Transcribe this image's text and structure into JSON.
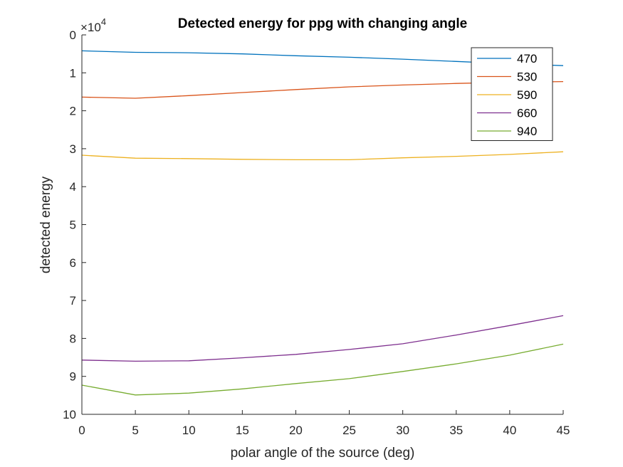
{
  "chart_data": {
    "type": "line",
    "title": "Detected energy for ppg with changing angle",
    "xlabel": "polar angle of the source (deg)",
    "ylabel": "detected energy",
    "y_multiplier_base": "×10",
    "y_multiplier_exp": "4",
    "y_direction": "reversed",
    "xlim": [
      0,
      45
    ],
    "ylim": [
      0,
      10
    ],
    "xticks": [
      "0",
      "5",
      "10",
      "15",
      "20",
      "25",
      "30",
      "35",
      "40",
      "45"
    ],
    "yticks": [
      "0",
      "1",
      "2",
      "3",
      "4",
      "5",
      "6",
      "7",
      "8",
      "9",
      "10"
    ],
    "grid": false,
    "legend_position": "top-right",
    "x": [
      0,
      5,
      10,
      15,
      20,
      25,
      30,
      35,
      40,
      45
    ],
    "series": [
      {
        "name": "470",
        "color": "#0072BD",
        "values": [
          0.42,
          0.46,
          0.47,
          0.5,
          0.55,
          0.59,
          0.64,
          0.7,
          0.76,
          0.81
        ]
      },
      {
        "name": "530",
        "color": "#D95319",
        "values": [
          1.64,
          1.67,
          1.6,
          1.52,
          1.44,
          1.37,
          1.32,
          1.28,
          1.25,
          1.23
        ]
      },
      {
        "name": "590",
        "color": "#EDB120",
        "values": [
          3.17,
          3.25,
          3.26,
          3.28,
          3.29,
          3.29,
          3.24,
          3.2,
          3.15,
          3.08
        ]
      },
      {
        "name": "660",
        "color": "#7E2F8E",
        "values": [
          8.57,
          8.6,
          8.59,
          8.51,
          8.42,
          8.29,
          8.14,
          7.91,
          7.66,
          7.4
        ]
      },
      {
        "name": "940",
        "color": "#77AC30",
        "values": [
          9.23,
          9.49,
          9.44,
          9.33,
          9.19,
          9.06,
          8.87,
          8.67,
          8.44,
          8.15
        ]
      }
    ]
  }
}
